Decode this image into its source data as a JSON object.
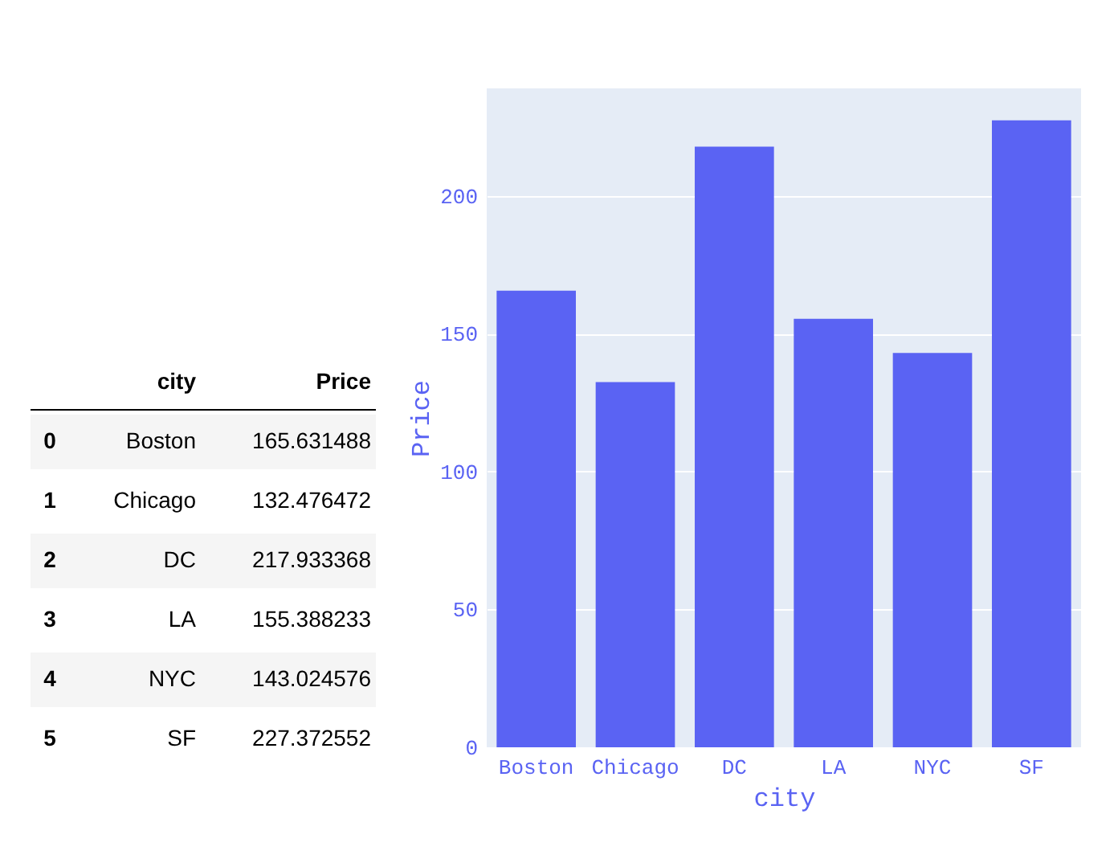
{
  "chart_data": [
    {
      "type": "heatmap",
      "y2label": "city",
      "categories": [
        "Price"
      ],
      "y_categories": [
        "0",
        "1",
        "2",
        "3",
        "4",
        "5"
      ],
      "y2_categories": [
        "Boston",
        "Chicago",
        "DC",
        "LA",
        "NYC",
        "SF"
      ],
      "cells": [
        [
          165.631488
        ],
        [
          132.476472
        ],
        [
          217.933368
        ],
        [
          155.388233
        ],
        [
          143.024576
        ],
        [
          227.372552
        ]
      ],
      "data_labels": true
    },
    {
      "type": "bar",
      "xlabel": "city",
      "ylabel": "Price",
      "categories": [
        "Boston",
        "Chicago",
        "DC",
        "LA",
        "NYC",
        "SF"
      ],
      "values": [
        165.6,
        132.5,
        217.9,
        155.4,
        143.0,
        227.4
      ],
      "color": "#5a63f3",
      "ylim": [
        0,
        239
      ],
      "yticks": [
        0,
        50,
        100,
        150,
        200
      ],
      "grid": "y"
    }
  ]
}
